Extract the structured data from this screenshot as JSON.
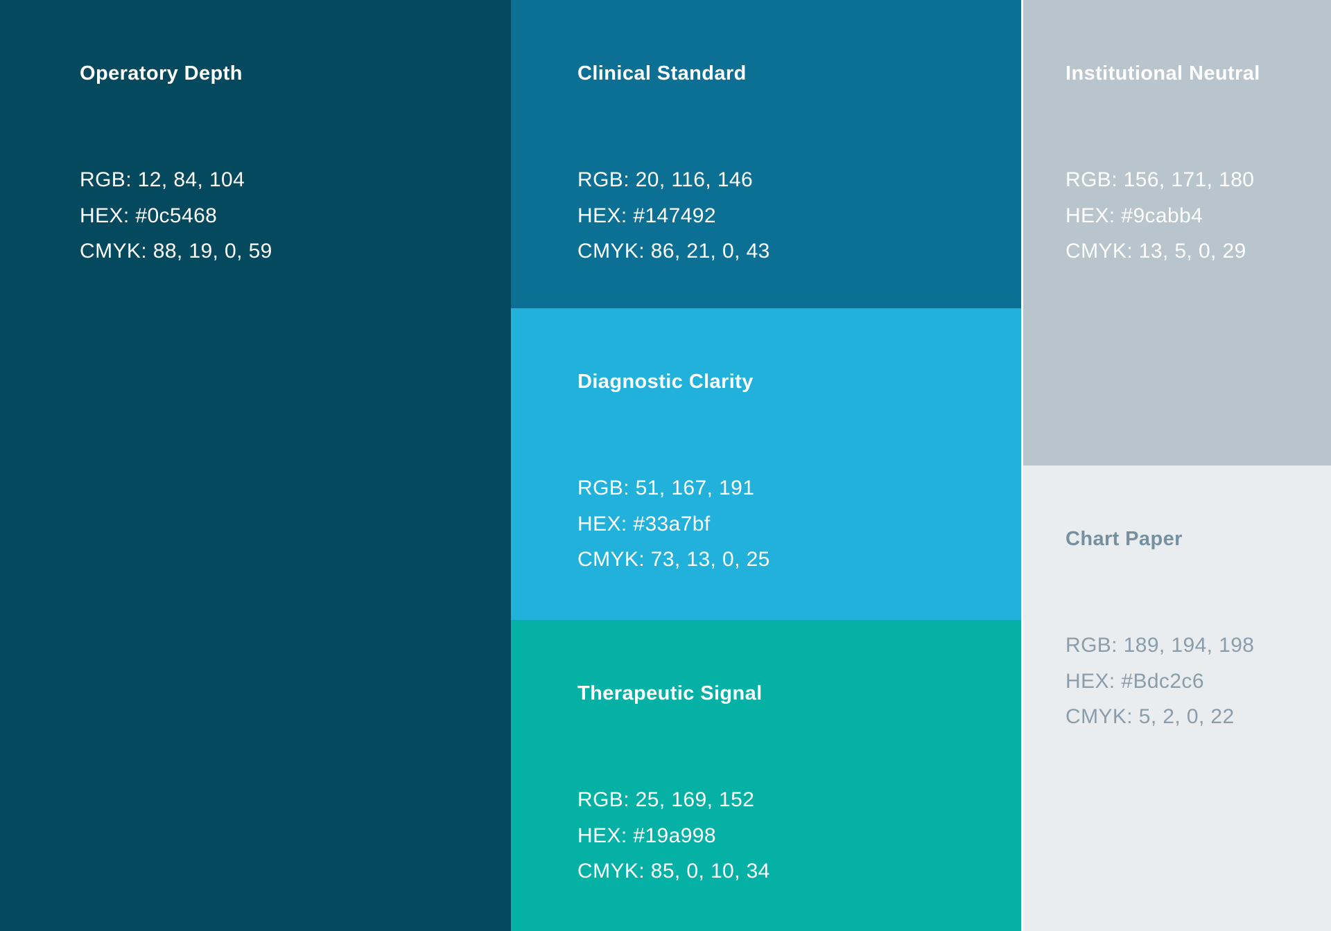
{
  "page": {
    "divider_color": "#ffffff"
  },
  "swatches": [
    {
      "id": "operatory-depth",
      "title": "Operatory Depth",
      "rgb": "RGB: 12, 84, 104",
      "hex": "HEX: #0c5468",
      "cmyk": "CMYK: 88, 19, 0, 59",
      "swatch_color": "#05495F",
      "title_color": "#FFFFFF",
      "value_color": "#FFFFFF"
    },
    {
      "id": "clinical-standard",
      "title": "Clinical Standard",
      "rgb": "RGB: 20, 116, 146",
      "hex": "HEX: #147492",
      "cmyk": "CMYK: 86, 21, 0, 43",
      "swatch_color": "#0B7094",
      "title_color": "#FFFFFF",
      "value_color": "#FFFFFF"
    },
    {
      "id": "diagnostic-clarity",
      "title": "Diagnostic Clarity",
      "rgb": "RGB: 51, 167, 191",
      "hex": "HEX: #33a7bf",
      "cmyk": "CMYK: 73, 13, 0, 25",
      "swatch_color": "#22B1DA",
      "title_color": "#FFFFFF",
      "value_color": "#FFFFFF"
    },
    {
      "id": "therapeutic-signal",
      "title": "Therapeutic Signal",
      "rgb": "RGB: 25, 169, 152",
      "hex": "HEX: #19a998",
      "cmyk": "CMYK: 85, 0, 10, 34",
      "swatch_color": "#05B1A5",
      "title_color": "#FFFFFF",
      "value_color": "#FFFFFF"
    },
    {
      "id": "institutional-neutral",
      "title": "Institutional Neutral",
      "rgb": "RGB: 156, 171, 180",
      "hex": "HEX: #9cabb4",
      "cmyk": "CMYK: 13, 5, 0, 29",
      "swatch_color": "#B9C5CC",
      "title_color": "#FFFFFF",
      "value_color": "#FFFFFF"
    },
    {
      "id": "chart-paper",
      "title": "Chart Paper",
      "rgb": "RGB: 189, 194, 198",
      "hex": "HEX: #Bdc2c6",
      "cmyk": "CMYK: 5, 2, 0, 22",
      "swatch_color": "#E9EDEF",
      "title_color": "#76909F",
      "value_color": "#8A9DAB"
    }
  ]
}
